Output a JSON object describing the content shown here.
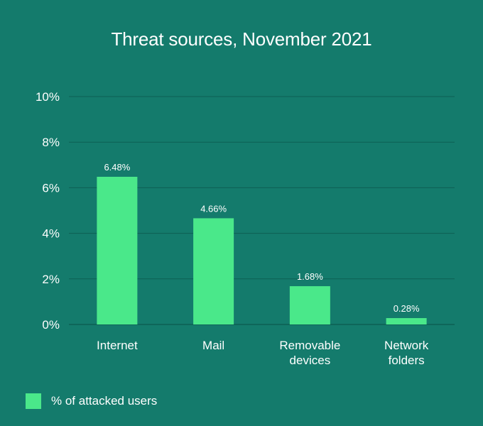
{
  "chart_data": {
    "type": "bar",
    "title": "Threat sources, November 2021",
    "categories": [
      [
        "Internet"
      ],
      [
        "Mail"
      ],
      [
        "Removable",
        "devices"
      ],
      [
        "Network",
        "folders"
      ]
    ],
    "series": [
      {
        "name": "% of attacked users",
        "values": [
          6.48,
          4.66,
          1.68,
          0.28
        ]
      }
    ],
    "data_labels": [
      "6.48%",
      "4.66%",
      "1.68%",
      "0.28%"
    ],
    "y_ticks": [
      "0%",
      "2%",
      "4%",
      "6%",
      "8%",
      "10%"
    ],
    "ylim": [
      0,
      10
    ],
    "grid": true,
    "legend_position": "bottom-left",
    "colors": {
      "background": "#147b6c",
      "bar": "#4ae88a",
      "grid": "#0d5f53",
      "text": "#ffffff"
    }
  }
}
